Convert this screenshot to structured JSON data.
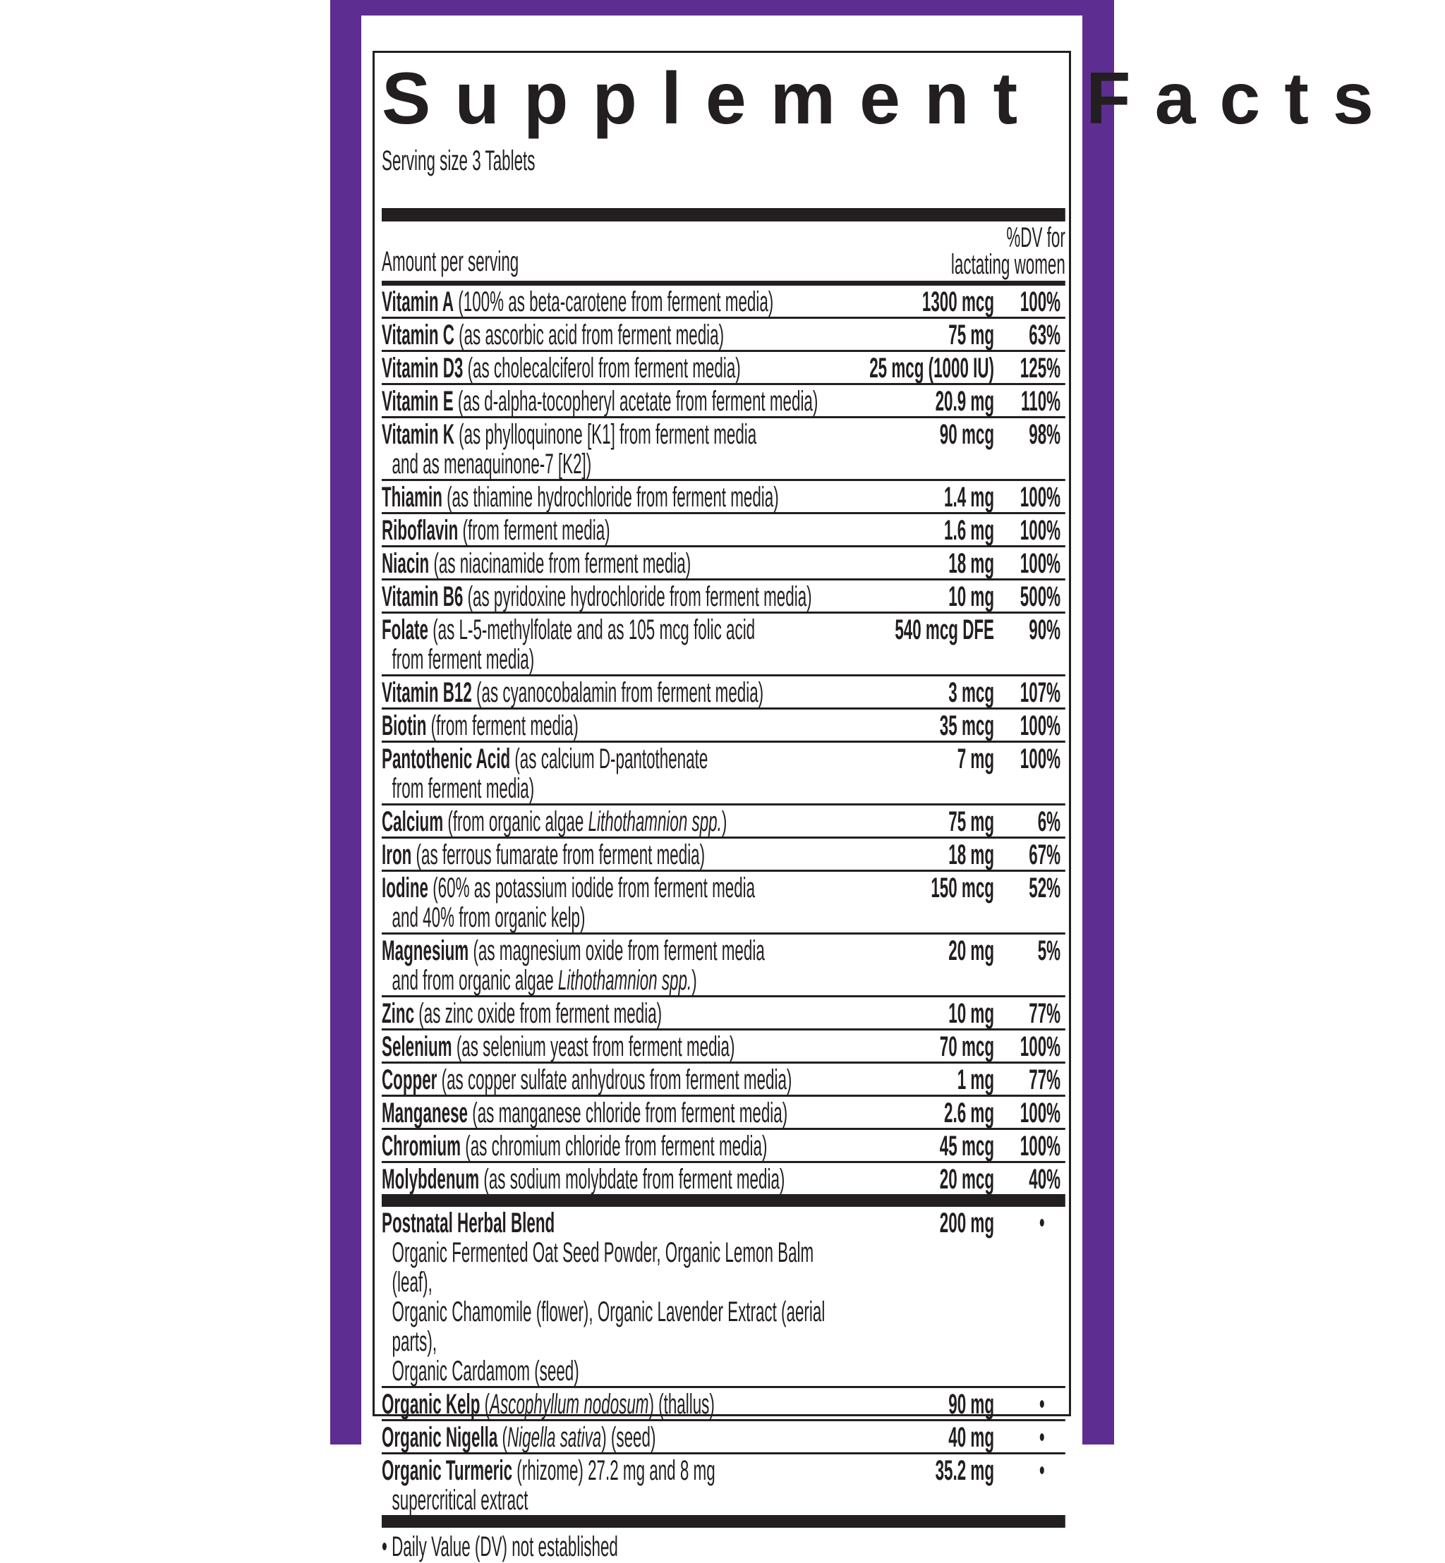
{
  "colors": {
    "border_purple": "#5e2d91",
    "text": "#231f20"
  },
  "title": "Supplement Facts",
  "serving_size": "Serving size 3 Tablets",
  "header": {
    "amount_label": "Amount per serving",
    "dv_line1": "%DV for",
    "dv_line2": "lactating women"
  },
  "nutrients": [
    {
      "name": "Vitamin A",
      "desc": [
        [
          "(100% as beta-carotene from ferment media)"
        ]
      ],
      "amount": "1300 mcg",
      "dv": "100%"
    },
    {
      "name": "Vitamin C",
      "desc": [
        [
          "(as ascorbic acid from ferment media)"
        ]
      ],
      "amount": "75 mg",
      "dv": "63%"
    },
    {
      "name": "Vitamin D3",
      "desc": [
        [
          "(as cholecalciferol from ferment media)"
        ]
      ],
      "amount": "25 mcg (1000 IU)",
      "dv": "125%"
    },
    {
      "name": "Vitamin E",
      "desc": [
        [
          "(as d-alpha-tocopheryl acetate from ferment media)"
        ]
      ],
      "amount": "20.9 mg",
      "dv": "110%"
    },
    {
      "name": "Vitamin K",
      "desc": [
        [
          "(as phylloquinone [K1] from ferment media"
        ],
        [
          "and as menaquinone-7 [K2])"
        ]
      ],
      "amount": "90 mcg",
      "dv": "98%"
    },
    {
      "name": "Thiamin",
      "desc": [
        [
          "(as thiamine hydrochloride from ferment media)"
        ]
      ],
      "amount": "1.4 mg",
      "dv": "100%"
    },
    {
      "name": "Riboflavin",
      "desc": [
        [
          "(from ferment media)"
        ]
      ],
      "amount": "1.6 mg",
      "dv": "100%"
    },
    {
      "name": "Niacin",
      "desc": [
        [
          "(as niacinamide from ferment media)"
        ]
      ],
      "amount": "18 mg",
      "dv": "100%"
    },
    {
      "name": "Vitamin B6",
      "desc": [
        [
          "(as pyridoxine hydrochloride from ferment media)"
        ]
      ],
      "amount": "10 mg",
      "dv": "500%"
    },
    {
      "name": "Folate",
      "desc": [
        [
          "(as L-5-methylfolate and as 105 mcg folic acid"
        ],
        [
          "from ferment media)"
        ]
      ],
      "amount": "540 mcg DFE",
      "dv": "90%"
    },
    {
      "name": "Vitamin B12",
      "desc": [
        [
          "(as cyanocobalamin from ferment media)"
        ]
      ],
      "amount": "3 mcg",
      "dv": "107%"
    },
    {
      "name": "Biotin",
      "desc": [
        [
          "(from ferment media)"
        ]
      ],
      "amount": "35 mcg",
      "dv": "100%"
    },
    {
      "name": "Pantothenic Acid",
      "desc": [
        [
          "(as calcium D-pantothenate"
        ],
        [
          "from ferment media)"
        ]
      ],
      "amount": "7 mg",
      "dv": "100%"
    },
    {
      "name": "Calcium",
      "desc": [
        [
          "(from organic algae ",
          "Lithothamnion spp.",
          ")"
        ]
      ],
      "amount": "75 mg",
      "dv": "6%"
    },
    {
      "name": "Iron",
      "desc": [
        [
          "(as ferrous fumarate from ferment media)"
        ]
      ],
      "amount": "18 mg",
      "dv": "67%"
    },
    {
      "name": "Iodine",
      "desc": [
        [
          "(60% as potassium iodide from ferment media"
        ],
        [
          "and 40% from organic kelp)"
        ]
      ],
      "amount": "150 mcg",
      "dv": "52%"
    },
    {
      "name": "Magnesium",
      "desc": [
        [
          "(as magnesium oxide from ferment media"
        ],
        [
          "and from organic algae ",
          "Lithothamnion spp.",
          ")"
        ]
      ],
      "amount": "20 mg",
      "dv": "5%"
    },
    {
      "name": "Zinc",
      "desc": [
        [
          "(as zinc oxide from ferment media)"
        ]
      ],
      "amount": "10 mg",
      "dv": "77%"
    },
    {
      "name": "Selenium",
      "desc": [
        [
          "(as selenium yeast from ferment media)"
        ]
      ],
      "amount": "70 mcg",
      "dv": "100%"
    },
    {
      "name": "Copper",
      "desc": [
        [
          "(as copper sulfate anhydrous from ferment media)"
        ]
      ],
      "amount": "1 mg",
      "dv": "77%"
    },
    {
      "name": "Manganese",
      "desc": [
        [
          "(as manganese chloride from ferment media)"
        ]
      ],
      "amount": "2.6 mg",
      "dv": "100%"
    },
    {
      "name": "Chromium",
      "desc": [
        [
          "(as chromium chloride from ferment media)"
        ]
      ],
      "amount": "45 mcg",
      "dv": "100%"
    },
    {
      "name": "Molybdenum",
      "desc": [
        [
          "(as sodium molybdate from ferment media)"
        ]
      ],
      "amount": "20 mcg",
      "dv": "40%"
    }
  ],
  "herbals": [
    {
      "name": "Postnatal Herbal Blend",
      "desc": [
        [
          ""
        ],
        [
          "Organic Fermented Oat Seed Powder, Organic Lemon Balm (leaf),"
        ],
        [
          "Organic Chamomile (flower), Organic Lavender Extract (aerial parts),"
        ],
        [
          "Organic Cardamom (seed)"
        ]
      ],
      "amount": "200 mg",
      "dv": "•"
    },
    {
      "name": "Organic Kelp",
      "desc": [
        [
          "(",
          "Ascophyllum nodosum",
          ") (thallus)"
        ]
      ],
      "amount": "90 mg",
      "dv": "•"
    },
    {
      "name": "Organic Nigella",
      "desc": [
        [
          "(",
          "Nigella sativa",
          ") (seed)"
        ]
      ],
      "amount": "40 mg",
      "dv": "•"
    },
    {
      "name": "Organic Turmeric",
      "desc": [
        [
          "(rhizome) 27.2 mg and 8 mg"
        ],
        [
          "supercritical extract"
        ]
      ],
      "amount": "35.2 mg",
      "dv": "•"
    }
  ],
  "footnote": "• Daily Value (DV) not established"
}
